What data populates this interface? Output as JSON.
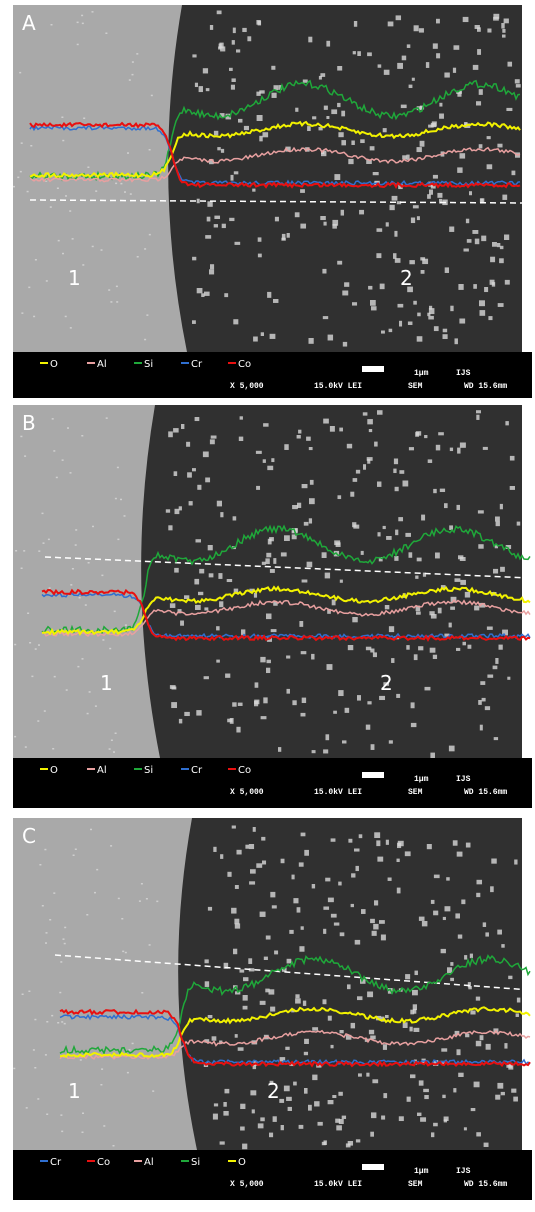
{
  "panels": [
    {
      "label": "A",
      "regions": [
        "1",
        "2"
      ],
      "legend": [
        {
          "name": "O",
          "color": "#f2f200"
        },
        {
          "name": "Al",
          "color": "#e8a0a0"
        },
        {
          "name": "Si",
          "color": "#1fa83a"
        },
        {
          "name": "Cr",
          "color": "#2f6fd0"
        },
        {
          "name": "Co",
          "color": "#e81010"
        }
      ],
      "scale_bar": "1μm",
      "lab": "IJS",
      "magnification": "X 5,000",
      "voltage": "15.0kV LEI",
      "mode": "SEM",
      "working_distance": "WD 15.6mm"
    },
    {
      "label": "B",
      "regions": [
        "1",
        "2"
      ],
      "legend": [
        {
          "name": "O",
          "color": "#f2f200"
        },
        {
          "name": "Al",
          "color": "#e8a0a0"
        },
        {
          "name": "Si",
          "color": "#1fa83a"
        },
        {
          "name": "Cr",
          "color": "#2f6fd0"
        },
        {
          "name": "Co",
          "color": "#e81010"
        }
      ],
      "scale_bar": "1μm",
      "lab": "IJS",
      "magnification": "X 5,000",
      "voltage": "15.0kV LEI",
      "mode": "SEM",
      "working_distance": "WD 15.6mm"
    },
    {
      "label": "C",
      "regions": [
        "1",
        "2"
      ],
      "legend": [
        {
          "name": "Cr",
          "color": "#2f6fd0"
        },
        {
          "name": "Co",
          "color": "#e81010"
        },
        {
          "name": "Al",
          "color": "#e8a0a0"
        },
        {
          "name": "Si",
          "color": "#1fa83a"
        },
        {
          "name": "O",
          "color": "#f2f200"
        }
      ],
      "scale_bar": "1μm",
      "lab": "IJS",
      "magnification": "X 5,000",
      "voltage": "15.0kV LEI",
      "mode": "SEM",
      "working_distance": "WD 15.6mm"
    }
  ]
}
